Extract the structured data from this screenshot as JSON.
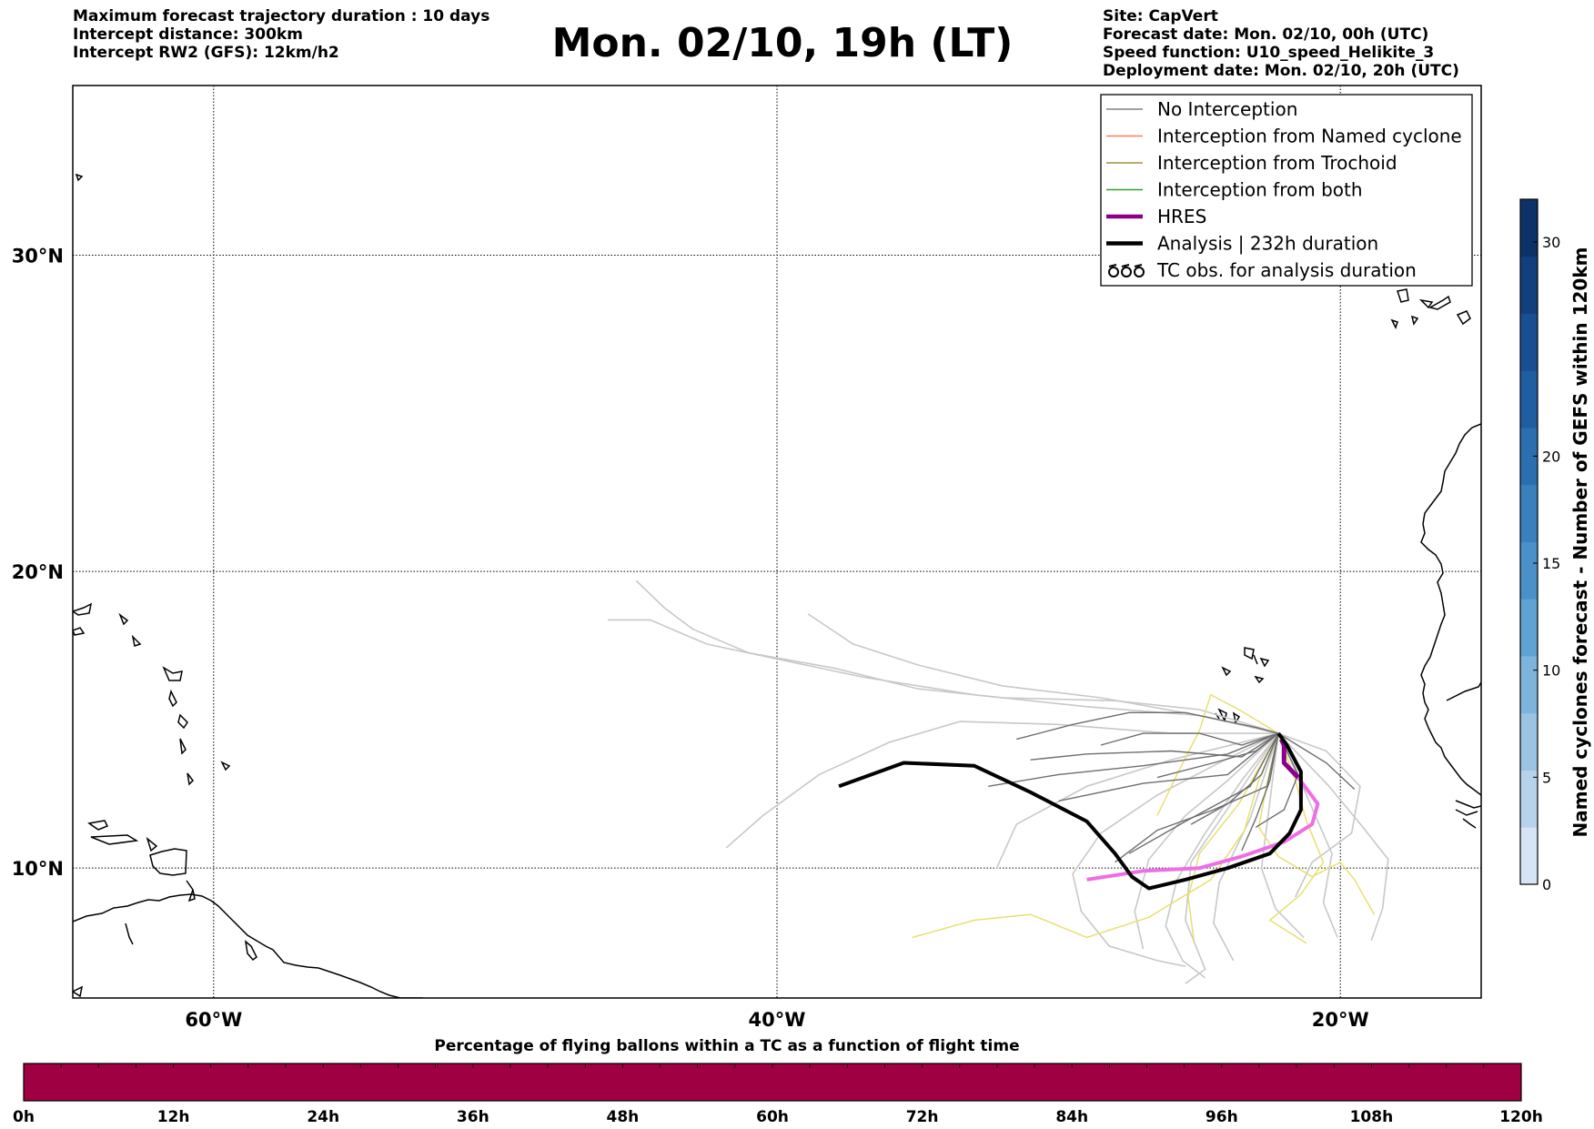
{
  "header_left": [
    "Maximum forecast trajectory duration : 10 days",
    "Intercept distance: 300km",
    "Intercept RW2 (GFS):  12km/h2"
  ],
  "title": "Mon. 02/10, 19h (LT)",
  "header_right": [
    "Site: CapVert",
    "Forecast date: Mon. 02/10, 00h (UTC)",
    "Speed function: U10_speed_Helikite_3",
    "Deployment date: Mon. 02/10, 20h (UTC)"
  ],
  "map": {
    "lat_range": [
      5.5,
      35
    ],
    "lon_range": [
      -65,
      -15
    ],
    "lat_gridlines": [
      30,
      20,
      10
    ],
    "lon_gridlines": [
      -60,
      -40,
      -20
    ],
    "lat_labels": [
      "30°N",
      "20°N",
      "10°N"
    ],
    "lon_labels": [
      "60°W",
      "40°W",
      "20°W"
    ],
    "grid": true
  },
  "legend": {
    "placement": "top-right",
    "items": [
      {
        "label": "No Interception",
        "color": "#808080",
        "style": "thin-line"
      },
      {
        "label": "Interception from Named cyclone",
        "color": "#ff7f50",
        "style": "thin-line"
      },
      {
        "label": "Interception from Trochoid",
        "color": "#a09040",
        "style": "thin-line"
      },
      {
        "label": "Interception from both",
        "color": "#33a02c",
        "style": "thin-line"
      },
      {
        "label": "HRES",
        "color": "#8b008b",
        "style": "thick-line"
      },
      {
        "label": "Analysis | 232h duration",
        "color": "#000000",
        "style": "thick-line"
      },
      {
        "label": "TC obs. for analysis duration",
        "color": "#000000",
        "style": "cyclone-symbols"
      }
    ]
  },
  "colorbar_right": {
    "title": "Named cyclones forecast - Number of GEFS within 120km",
    "ticks": [
      "0",
      "5",
      "10",
      "15",
      "20",
      "30"
    ],
    "tick_values": [
      0,
      5,
      10,
      15,
      20,
      30
    ],
    "range": [
      0,
      32
    ],
    "colors": [
      "#d6e4f5",
      "#b7d3ec",
      "#9bc4e3",
      "#7db4dc",
      "#5ea3d3",
      "#4a91c9",
      "#3a80bd",
      "#2b6fb0",
      "#1f5ea3",
      "#174f92",
      "#123f7e",
      "#0d3268"
    ]
  },
  "colorbar_bottom": {
    "title": "Percentage of flying ballons within a TC as a function of flight time",
    "ticks": [
      "0h",
      "12h",
      "24h",
      "36h",
      "48h",
      "60h",
      "72h",
      "84h",
      "96h",
      "108h",
      "120h"
    ],
    "tick_hours": [
      0,
      12,
      24,
      36,
      48,
      60,
      72,
      84,
      96,
      108,
      120
    ],
    "fill_color": "#9e0042"
  },
  "trajectories": {
    "analysis": [
      [
        -37.8,
        12.8
      ],
      [
        -35.5,
        13.6
      ],
      [
        -33,
        13.5
      ],
      [
        -31,
        12.6
      ],
      [
        -29,
        11.6
      ],
      [
        -28,
        10.5
      ],
      [
        -27.4,
        9.7
      ],
      [
        -26.8,
        9.3
      ],
      [
        -25.5,
        9.6
      ],
      [
        -24,
        10
      ],
      [
        -22.5,
        10.5
      ],
      [
        -21.8,
        11.2
      ],
      [
        -21.4,
        12
      ],
      [
        -21.4,
        13.3
      ],
      [
        -21.9,
        14.2
      ],
      [
        -22.2,
        14.6
      ]
    ],
    "hres": [
      [
        -29,
        9.6
      ],
      [
        -27,
        9.9
      ],
      [
        -25,
        10
      ],
      [
        -23.5,
        10.4
      ],
      [
        -22,
        10.9
      ],
      [
        -21,
        11.5
      ],
      [
        -20.8,
        12.2
      ],
      [
        -21.5,
        13.1
      ],
      [
        -22,
        13.6
      ],
      [
        -22,
        14.2
      ],
      [
        -22.1,
        14.4
      ]
    ],
    "gray_dark": [
      [
        [
          -22.2,
          14.6
        ],
        [
          -24,
          13.9
        ],
        [
          -27,
          13.5
        ],
        [
          -30,
          13.2
        ],
        [
          -32.5,
          12.8
        ]
      ],
      [
        [
          -22.2,
          14.6
        ],
        [
          -23,
          14.8
        ],
        [
          -25.5,
          15.3
        ],
        [
          -27.5,
          15.3
        ],
        [
          -29.5,
          14.9
        ],
        [
          -31.5,
          14.4
        ]
      ],
      [
        [
          -22.2,
          14.6
        ],
        [
          -24,
          13.2
        ],
        [
          -27,
          12.9
        ],
        [
          -30,
          12.3
        ]
      ],
      [
        [
          -22.2,
          14.6
        ],
        [
          -23.2,
          12.8
        ],
        [
          -25.5,
          11.6
        ],
        [
          -27.5,
          10.5
        ]
      ],
      [
        [
          -22.2,
          14.6
        ],
        [
          -22.5,
          13
        ],
        [
          -23,
          11.7
        ],
        [
          -23.5,
          10.6
        ]
      ],
      [
        [
          -22.2,
          14.6
        ],
        [
          -23.5,
          13.8
        ],
        [
          -26,
          14
        ],
        [
          -29,
          13.9
        ],
        [
          -31,
          13.7
        ]
      ],
      [
        [
          -22.2,
          14.6
        ],
        [
          -20.5,
          13.6
        ],
        [
          -19.5,
          12.7
        ]
      ],
      [
        [
          -22.2,
          14.6
        ],
        [
          -22.8,
          13.2
        ],
        [
          -24,
          12.2
        ],
        [
          -25.3,
          11.5
        ]
      ],
      [
        [
          -22.2,
          14.6
        ],
        [
          -23,
          14
        ],
        [
          -24.5,
          13.6
        ],
        [
          -26.5,
          13.1
        ]
      ],
      [
        [
          -22.2,
          14.6
        ],
        [
          -22.6,
          12.8
        ],
        [
          -24.5,
          12
        ],
        [
          -26.5,
          11.3
        ],
        [
          -28,
          10.2
        ]
      ],
      [
        [
          -22.2,
          14.6
        ],
        [
          -21.5,
          13.2
        ],
        [
          -22,
          12
        ],
        [
          -23,
          11.4
        ]
      ],
      [
        [
          -22.2,
          14.6
        ],
        [
          -23.5,
          14.2
        ],
        [
          -25,
          14.6
        ],
        [
          -27,
          14.6
        ],
        [
          -28.5,
          14.2
        ]
      ]
    ],
    "gray_light": [
      [
        [
          -22.2,
          14.6
        ],
        [
          -25,
          15.4
        ],
        [
          -28,
          15.7
        ],
        [
          -32,
          15.8
        ],
        [
          -35,
          16.1
        ],
        [
          -38,
          16.8
        ],
        [
          -41,
          17.3
        ],
        [
          -43,
          18.1
        ],
        [
          -44,
          18.8
        ],
        [
          -45,
          19.7
        ]
      ],
      [
        [
          -22.2,
          14.6
        ],
        [
          -25,
          15.2
        ],
        [
          -29,
          15.5
        ],
        [
          -33,
          15.9
        ],
        [
          -37,
          16.5
        ],
        [
          -40,
          17.1
        ],
        [
          -42.5,
          17.6
        ],
        [
          -44.5,
          18.4
        ],
        [
          -46,
          18.4
        ]
      ],
      [
        [
          -22.2,
          14.6
        ],
        [
          -26,
          14.6
        ],
        [
          -30,
          14.9
        ],
        [
          -33.5,
          15
        ],
        [
          -36,
          14.3
        ],
        [
          -38.5,
          13.2
        ],
        [
          -40.5,
          11.8
        ],
        [
          -41.8,
          10.7
        ]
      ],
      [
        [
          -22.2,
          14.6
        ],
        [
          -25,
          15.2
        ],
        [
          -28.5,
          15.8
        ],
        [
          -32,
          16.2
        ],
        [
          -35,
          16.9
        ],
        [
          -37.3,
          17.6
        ],
        [
          -38.9,
          18.6
        ]
      ],
      [
        [
          -22.2,
          14.6
        ],
        [
          -24.5,
          13.5
        ],
        [
          -26.5,
          12.5
        ],
        [
          -28.5,
          11.2
        ],
        [
          -29.5,
          9.8
        ],
        [
          -29.2,
          8.5
        ],
        [
          -28.2,
          7.3
        ],
        [
          -26.5,
          6.8
        ],
        [
          -25.5,
          6.6
        ]
      ],
      [
        [
          -22.2,
          14.6
        ],
        [
          -23.5,
          13
        ],
        [
          -24.8,
          11.2
        ],
        [
          -25.8,
          9.6
        ],
        [
          -26.2,
          8
        ],
        [
          -25.6,
          6.8
        ],
        [
          -24.8,
          6.2
        ]
      ],
      [
        [
          -22.2,
          14.6
        ],
        [
          -21.2,
          12.5
        ],
        [
          -20.3,
          10.5
        ],
        [
          -20.6,
          8.8
        ],
        [
          -20.1,
          7.6
        ]
      ],
      [
        [
          -22.2,
          14.6
        ],
        [
          -20.5,
          14
        ],
        [
          -19.3,
          12.8
        ],
        [
          -19.6,
          11.2
        ],
        [
          -21,
          10.2
        ],
        [
          -21.6,
          9
        ]
      ],
      [
        [
          -22.2,
          14.6
        ],
        [
          -23.2,
          11.7
        ],
        [
          -24.3,
          9.5
        ],
        [
          -24.5,
          8.1
        ],
        [
          -23.8,
          6.8
        ]
      ],
      [
        [
          -22.2,
          14.6
        ],
        [
          -22.5,
          12.3
        ],
        [
          -22.8,
          10
        ],
        [
          -22.3,
          8.6
        ],
        [
          -21.3,
          7.6
        ]
      ],
      [
        [
          -22.2,
          14.6
        ],
        [
          -26,
          13.7
        ],
        [
          -29,
          12.8
        ],
        [
          -31.5,
          11.5
        ],
        [
          -32.2,
          10
        ]
      ],
      [
        [
          -22.2,
          14.6
        ],
        [
          -24,
          13
        ],
        [
          -25.5,
          11.8
        ],
        [
          -26.8,
          10.3
        ],
        [
          -27.3,
          8.5
        ],
        [
          -27,
          7.2
        ]
      ],
      [
        [
          -22.2,
          14.6
        ],
        [
          -20.4,
          12.8
        ],
        [
          -19.2,
          11.4
        ],
        [
          -18.3,
          10.3
        ],
        [
          -18.5,
          8.6
        ],
        [
          -18.9,
          7.5
        ]
      ],
      [
        [
          -22.2,
          14.6
        ],
        [
          -23.6,
          12.6
        ],
        [
          -25.3,
          10.2
        ],
        [
          -25.5,
          8.2
        ],
        [
          -24.8,
          6.5
        ],
        [
          -25.5,
          6
        ]
      ]
    ],
    "yellow": [
      [
        [
          -22.2,
          14.6
        ],
        [
          -23.6,
          15.4
        ],
        [
          -24.6,
          15.9
        ],
        [
          -25,
          14.7
        ],
        [
          -25.8,
          13.2
        ],
        [
          -26.5,
          11.8
        ]
      ],
      [
        [
          -22.2,
          14.6
        ],
        [
          -22.9,
          13
        ],
        [
          -23.4,
          11.3
        ],
        [
          -24.6,
          9.6
        ],
        [
          -26.8,
          8.3
        ],
        [
          -29,
          7.6
        ],
        [
          -31,
          8.4
        ],
        [
          -33,
          8.2
        ],
        [
          -35.2,
          7.6
        ]
      ],
      [
        [
          -22.2,
          14.6
        ],
        [
          -22.6,
          12.9
        ],
        [
          -22.9,
          11.4
        ],
        [
          -22.2,
          10.4
        ],
        [
          -21,
          9.7
        ],
        [
          -20,
          10.2
        ],
        [
          -19.5,
          9.6
        ],
        [
          -18.8,
          8.4
        ]
      ],
      [
        [
          -22.2,
          14.6
        ],
        [
          -21.6,
          13
        ],
        [
          -21.2,
          11.6
        ],
        [
          -20.6,
          10.2
        ],
        [
          -21.4,
          9.1
        ],
        [
          -22.5,
          8.2
        ],
        [
          -21.2,
          7.4
        ]
      ],
      [
        [
          -22.2,
          14.6
        ],
        [
          -23.6,
          12.2
        ],
        [
          -25,
          10.5
        ],
        [
          -25.4,
          9
        ],
        [
          -25.2,
          7.5
        ]
      ]
    ]
  }
}
